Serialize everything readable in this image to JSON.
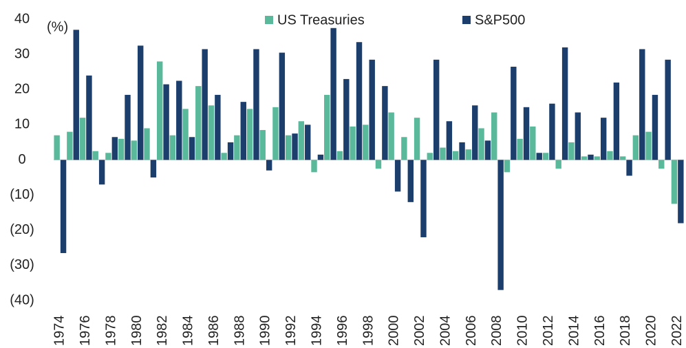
{
  "chart_data": {
    "type": "bar",
    "unit_label": "(%)",
    "categories": [
      "1974",
      null,
      "1976",
      null,
      "1978",
      null,
      "1980",
      null,
      "1982",
      null,
      "1984",
      null,
      "1986",
      null,
      "1988",
      null,
      "1990",
      null,
      "1992",
      null,
      "1994",
      null,
      "1996",
      null,
      "1998",
      null,
      "2000",
      null,
      "2002",
      null,
      "2004",
      null,
      "2006",
      null,
      "2008",
      null,
      "2010",
      null,
      "2012",
      null,
      "2014",
      null,
      "2016",
      null,
      "2018",
      null,
      "2020",
      null,
      "2022"
    ],
    "series": [
      {
        "name": "US Treasuries",
        "color": "#5bb99b",
        "values": [
          7,
          8,
          12,
          2.5,
          2,
          6,
          5.5,
          9,
          28,
          7,
          14.5,
          21,
          15.5,
          2,
          7,
          14.5,
          8.5,
          15,
          7,
          11,
          -3.5,
          18.5,
          2.5,
          9.5,
          10,
          -2.5,
          13.5,
          6.5,
          12,
          2,
          3.5,
          2.5,
          3,
          9,
          13.5,
          -3.5,
          6,
          9.5,
          2,
          -2.5,
          5,
          1,
          1,
          2.5,
          1,
          7,
          8,
          -2.5,
          -12.5
        ]
      },
      {
        "name": "S&P500",
        "color": "#1b3e6d",
        "values": [
          -26.5,
          37,
          24,
          -7,
          6.5,
          18.5,
          32.5,
          -5,
          21.5,
          22.5,
          6.5,
          31.5,
          18.5,
          5,
          16.5,
          31.5,
          -3,
          30.5,
          7.5,
          10,
          1.5,
          37.5,
          23,
          33.5,
          28.5,
          21,
          -9,
          -12,
          -22,
          28.5,
          11,
          5,
          15.5,
          5.5,
          -37,
          26.5,
          15,
          2,
          16,
          32,
          13.5,
          1.5,
          12,
          22,
          -4.5,
          31.5,
          18.5,
          28.5,
          -18
        ]
      }
    ],
    "ylim": [
      -40,
      40
    ],
    "yticks": [
      {
        "value": -40,
        "label": "(40)"
      },
      {
        "value": -30,
        "label": "(30)"
      },
      {
        "value": -20,
        "label": "(20)"
      },
      {
        "value": -10,
        "label": "(10)"
      },
      0,
      10,
      20,
      30,
      40
    ],
    "grid": false,
    "legend": "top"
  }
}
